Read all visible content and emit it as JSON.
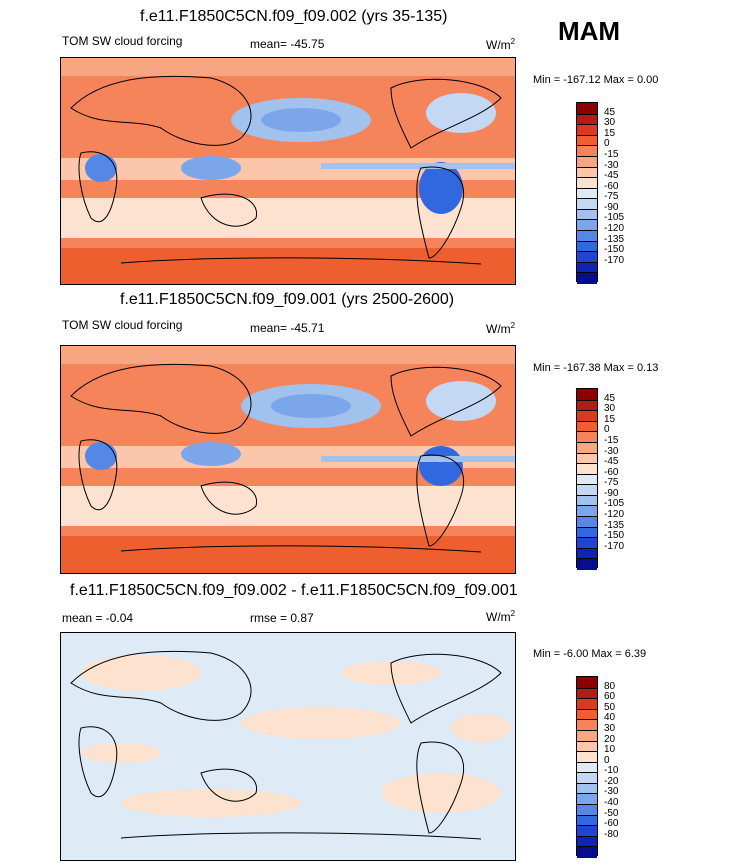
{
  "season": "MAM",
  "panels": [
    {
      "title": "f.e11.F1850C5CN.f09_f09.002 (yrs 35-135)",
      "left_label": "TOM SW cloud forcing",
      "center_label": "mean= -45.75",
      "units": "W/m",
      "units_sup": "2",
      "minmax": "Min = -167.12 Max =   0.00",
      "colorbar": {
        "colors": [
          "#8b0000",
          "#b51a14",
          "#d93a20",
          "#ee5f30",
          "#f5845a",
          "#f8a582",
          "#fbc6aa",
          "#fde3cf",
          "#deebf7",
          "#c3d8f2",
          "#a2c2ee",
          "#7ba6ea",
          "#5587e6",
          "#3168e0",
          "#1e46d0",
          "#0f24b4",
          "#060e8c"
        ],
        "labels": [
          "45",
          "30",
          "15",
          "0",
          "-15",
          "-30",
          "-45",
          "-60",
          "-75",
          "-90",
          "-105",
          "-120",
          "-135",
          "-150",
          "-170"
        ]
      }
    },
    {
      "title": "f.e11.F1850C5CN.f09_f09.001 (yrs 2500-2600)",
      "left_label": "TOM SW cloud forcing",
      "center_label": "mean= -45.71",
      "units": "W/m",
      "units_sup": "2",
      "minmax": "Min = -167.38 Max =   0.13",
      "colorbar": {
        "colors": [
          "#8b0000",
          "#b51a14",
          "#d93a20",
          "#ee5f30",
          "#f5845a",
          "#f8a582",
          "#fbc6aa",
          "#fde3cf",
          "#deebf7",
          "#c3d8f2",
          "#a2c2ee",
          "#7ba6ea",
          "#5587e6",
          "#3168e0",
          "#1e46d0",
          "#0f24b4",
          "#060e8c"
        ],
        "labels": [
          "45",
          "30",
          "15",
          "0",
          "-15",
          "-30",
          "-45",
          "-60",
          "-75",
          "-90",
          "-105",
          "-120",
          "-135",
          "-150",
          "-170"
        ]
      }
    },
    {
      "title": "f.e11.F1850C5CN.f09_f09.002 - f.e11.F1850C5CN.f09_f09.001",
      "left_label": "mean =  -0.04",
      "center_label": "rmse =   0.87",
      "units": "W/m",
      "units_sup": "2",
      "minmax": "Min =  -6.00 Max =   6.39",
      "colorbar": {
        "colors": [
          "#8b0000",
          "#b51a14",
          "#d93a20",
          "#ee5f30",
          "#f5845a",
          "#f8a582",
          "#fbc6aa",
          "#fde3cf",
          "#deebf7",
          "#c3d8f2",
          "#a2c2ee",
          "#7ba6ea",
          "#5587e6",
          "#3168e0",
          "#1e46d0",
          "#0f24b4",
          "#060e8c"
        ],
        "labels": [
          "80",
          "60",
          "50",
          "40",
          "30",
          "20",
          "10",
          "0",
          "-10",
          "-20",
          "-30",
          "-40",
          "-50",
          "-60",
          "-80"
        ]
      }
    }
  ]
}
